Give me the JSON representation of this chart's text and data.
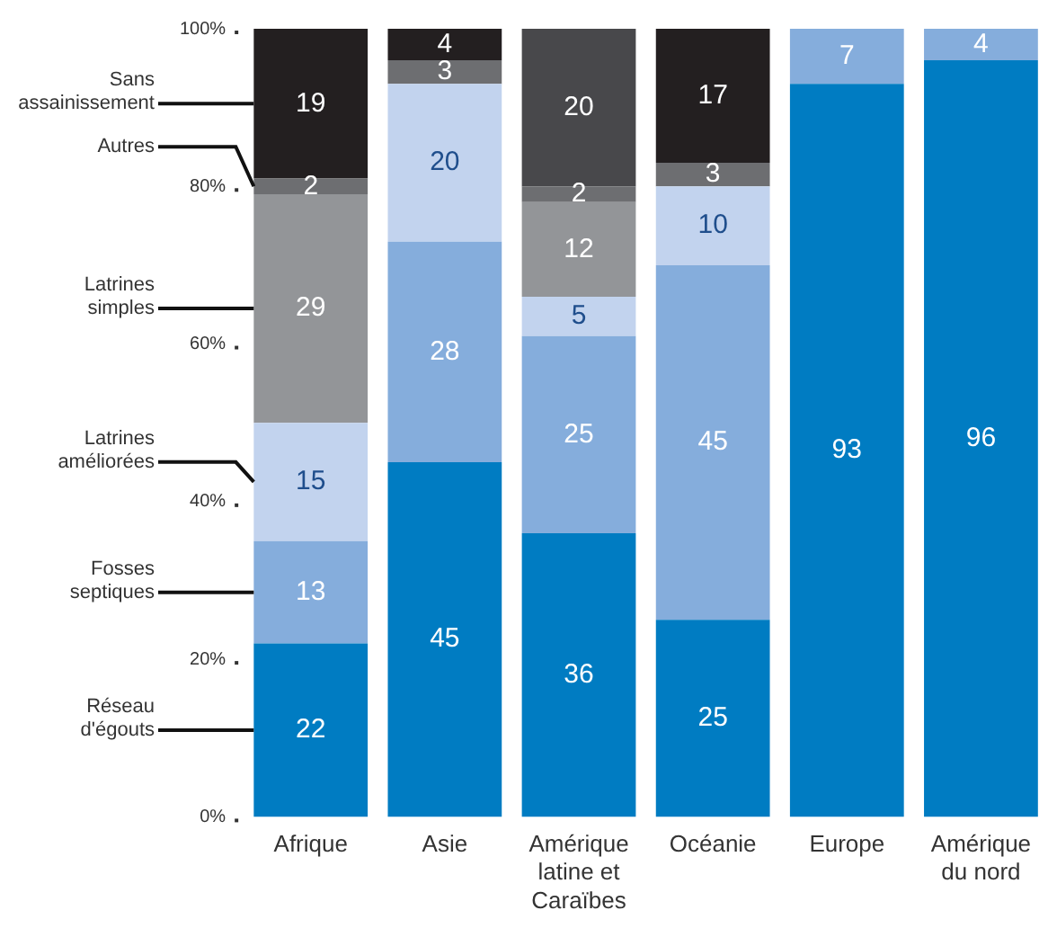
{
  "chart_data": {
    "type": "bar",
    "stacked": true,
    "categories": [
      "Afrique",
      "Asie",
      "Amérique latine et Caraïbes",
      "Océanie",
      "Europe",
      "Amérique du nord"
    ],
    "series": [
      {
        "name": "Réseau d'égouts",
        "color": "#007cc2",
        "values": [
          22,
          45,
          36,
          25,
          93,
          96
        ]
      },
      {
        "name": "Fosses septiques",
        "color": "#85addc",
        "values": [
          13,
          28,
          25,
          45,
          7,
          4
        ]
      },
      {
        "name": "Latrines améliorées",
        "color": "#c2d3ee",
        "values": [
          15,
          20,
          5,
          10,
          null,
          null
        ]
      },
      {
        "name": "Latrines simples",
        "color": "#939598",
        "values": [
          29,
          null,
          12,
          null,
          null,
          null
        ]
      },
      {
        "name": "Autres",
        "color": "#6d6e71",
        "values": [
          2,
          3,
          2,
          3,
          null,
          null
        ]
      },
      {
        "name": "Sans assainissement",
        "color": "#231f20",
        "colors": [
          null,
          null,
          "#48484b",
          null,
          null,
          null
        ],
        "values": [
          19,
          4,
          20,
          17,
          null,
          null
        ]
      }
    ],
    "ylim": [
      0,
      100
    ],
    "yticks": [
      {
        "value": 0,
        "label": "0%"
      },
      {
        "value": 20,
        "label": "20%"
      },
      {
        "value": 40,
        "label": "40%"
      },
      {
        "value": 60,
        "label": "60%"
      },
      {
        "value": 80,
        "label": "80%"
      },
      {
        "value": 100,
        "label": "100%"
      }
    ],
    "data_labels": true,
    "grid": false,
    "legend": "left"
  }
}
